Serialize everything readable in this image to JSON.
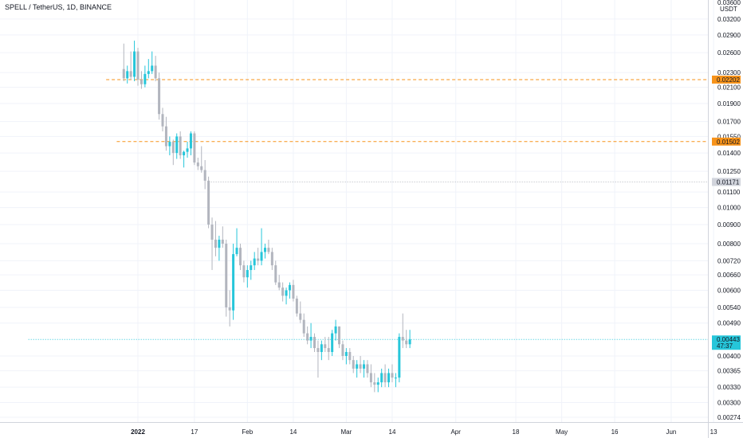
{
  "header": {
    "title": "SPELL / TetherUS, 1D, BINANCE"
  },
  "chart_data": {
    "type": "candlestick",
    "title": "SPELL / TetherUS, 1D, BINANCE",
    "y_axis": {
      "scale": "log",
      "currency": "USDT",
      "top_label": "0.03600",
      "ticks": [
        "0.03200",
        "0.02900",
        "0.02600",
        "0.02300",
        "0.02100",
        "0.01900",
        "0.01700",
        "0.01550",
        "0.01400",
        "0.01250",
        "0.01100",
        "0.01000",
        "0.00900",
        "0.00800",
        "0.00720",
        "0.00660",
        "0.00600",
        "0.00540",
        "0.00490",
        "0.00400",
        "0.00365",
        "0.00330",
        "0.00300",
        "0.00274"
      ],
      "ylim": [
        0.0026,
        0.037
      ]
    },
    "x_axis": {
      "labels": [
        {
          "label": "2022",
          "date": "2022-01-01",
          "bold": true
        },
        {
          "label": "17",
          "date": "2022-01-17"
        },
        {
          "label": "Feb",
          "date": "2022-02-01"
        },
        {
          "label": "14",
          "date": "2022-02-14"
        },
        {
          "label": "Mar",
          "date": "2022-03-01"
        },
        {
          "label": "14",
          "date": "2022-03-14"
        },
        {
          "label": "Apr",
          "date": "2022-04-01"
        },
        {
          "label": "18",
          "date": "2022-04-18"
        },
        {
          "label": "May",
          "date": "2022-05-01"
        },
        {
          "label": "16",
          "date": "2022-05-16"
        },
        {
          "label": "Jun",
          "date": "2022-06-01"
        },
        {
          "label": "13",
          "date": "2022-06-13"
        }
      ]
    },
    "horizontal_lines": [
      {
        "value": 0.02202,
        "label": "0.02202",
        "style": "dashed",
        "color": "#f7931a",
        "start_date": "2021-12-23"
      },
      {
        "value": 0.01502,
        "label": "0.01502",
        "style": "dashed",
        "color": "#f7931a",
        "start_date": "2021-12-26"
      },
      {
        "value": 0.01171,
        "label": "0.01171",
        "style": "dotted",
        "color": "#b2b5be",
        "start_date": "2022-01-21"
      },
      {
        "value": 0.00443,
        "label": "0.00443",
        "sub_label": "47:37",
        "style": "dotted",
        "color": "#26c6da",
        "start_date": "2021-12-01",
        "current": true
      }
    ],
    "colors": {
      "up": "#26c6da",
      "down": "#b2b5be",
      "level": "#f7931a",
      "grid": "#f0f3fa"
    },
    "grid": true,
    "candles": [
      {
        "date": "2021-12-28",
        "o": 0.0235,
        "h": 0.0275,
        "l": 0.0218,
        "c": 0.0222
      },
      {
        "date": "2021-12-29",
        "o": 0.0222,
        "h": 0.024,
        "l": 0.0215,
        "c": 0.0232
      },
      {
        "date": "2021-12-30",
        "o": 0.0232,
        "h": 0.0262,
        "l": 0.022,
        "c": 0.0224
      },
      {
        "date": "2021-12-31",
        "o": 0.0224,
        "h": 0.028,
        "l": 0.0218,
        "c": 0.0262
      },
      {
        "date": "2022-01-01",
        "o": 0.0262,
        "h": 0.0268,
        "l": 0.0212,
        "c": 0.022
      },
      {
        "date": "2022-01-02",
        "o": 0.022,
        "h": 0.0232,
        "l": 0.0208,
        "c": 0.0214
      },
      {
        "date": "2022-01-03",
        "o": 0.0214,
        "h": 0.024,
        "l": 0.021,
        "c": 0.0228
      },
      {
        "date": "2022-01-04",
        "o": 0.0228,
        "h": 0.025,
        "l": 0.0222,
        "c": 0.0232
      },
      {
        "date": "2022-01-05",
        "o": 0.0232,
        "h": 0.0262,
        "l": 0.0228,
        "c": 0.024
      },
      {
        "date": "2022-01-06",
        "o": 0.024,
        "h": 0.0255,
        "l": 0.0218,
        "c": 0.0222
      },
      {
        "date": "2022-01-07",
        "o": 0.0222,
        "h": 0.023,
        "l": 0.0172,
        "c": 0.0178
      },
      {
        "date": "2022-01-08",
        "o": 0.0178,
        "h": 0.0185,
        "l": 0.016,
        "c": 0.0165
      },
      {
        "date": "2022-01-09",
        "o": 0.0165,
        "h": 0.0175,
        "l": 0.0142,
        "c": 0.0146
      },
      {
        "date": "2022-01-10",
        "o": 0.0146,
        "h": 0.0155,
        "l": 0.0138,
        "c": 0.015
      },
      {
        "date": "2022-01-11",
        "o": 0.015,
        "h": 0.0152,
        "l": 0.013,
        "c": 0.014
      },
      {
        "date": "2022-01-12",
        "o": 0.014,
        "h": 0.0158,
        "l": 0.0135,
        "c": 0.0155
      },
      {
        "date": "2022-01-13",
        "o": 0.0155,
        "h": 0.016,
        "l": 0.0135,
        "c": 0.0138
      },
      {
        "date": "2022-01-14",
        "o": 0.0138,
        "h": 0.0142,
        "l": 0.0128,
        "c": 0.0141
      },
      {
        "date": "2022-01-15",
        "o": 0.0141,
        "h": 0.015,
        "l": 0.0136,
        "c": 0.0144
      },
      {
        "date": "2022-01-16",
        "o": 0.0144,
        "h": 0.016,
        "l": 0.0138,
        "c": 0.0158
      },
      {
        "date": "2022-01-17",
        "o": 0.0158,
        "h": 0.016,
        "l": 0.013,
        "c": 0.0132
      },
      {
        "date": "2022-01-18",
        "o": 0.0132,
        "h": 0.0136,
        "l": 0.0126,
        "c": 0.0129
      },
      {
        "date": "2022-01-19",
        "o": 0.0129,
        "h": 0.0146,
        "l": 0.0124,
        "c": 0.0126
      },
      {
        "date": "2022-01-20",
        "o": 0.0126,
        "h": 0.0134,
        "l": 0.0112,
        "c": 0.0118
      },
      {
        "date": "2022-01-21",
        "o": 0.0118,
        "h": 0.0121,
        "l": 0.0088,
        "c": 0.009
      },
      {
        "date": "2022-01-22",
        "o": 0.009,
        "h": 0.0094,
        "l": 0.0068,
        "c": 0.0082
      },
      {
        "date": "2022-01-23",
        "o": 0.0082,
        "h": 0.0092,
        "l": 0.0074,
        "c": 0.0078
      },
      {
        "date": "2022-01-24",
        "o": 0.0078,
        "h": 0.0084,
        "l": 0.0072,
        "c": 0.0082
      },
      {
        "date": "2022-01-25",
        "o": 0.0082,
        "h": 0.0089,
        "l": 0.0078,
        "c": 0.008
      },
      {
        "date": "2022-01-26",
        "o": 0.008,
        "h": 0.0082,
        "l": 0.0051,
        "c": 0.0054
      },
      {
        "date": "2022-01-27",
        "o": 0.0054,
        "h": 0.006,
        "l": 0.0048,
        "c": 0.0053
      },
      {
        "date": "2022-01-28",
        "o": 0.0053,
        "h": 0.008,
        "l": 0.005,
        "c": 0.0075
      },
      {
        "date": "2022-01-29",
        "o": 0.0075,
        "h": 0.0088,
        "l": 0.0074,
        "c": 0.0078
      },
      {
        "date": "2022-01-30",
        "o": 0.0078,
        "h": 0.008,
        "l": 0.0068,
        "c": 0.007
      },
      {
        "date": "2022-01-31",
        "o": 0.007,
        "h": 0.0072,
        "l": 0.0063,
        "c": 0.0065
      },
      {
        "date": "2022-02-01",
        "o": 0.0065,
        "h": 0.007,
        "l": 0.0061,
        "c": 0.0068
      },
      {
        "date": "2022-02-02",
        "o": 0.0068,
        "h": 0.0072,
        "l": 0.0064,
        "c": 0.007
      },
      {
        "date": "2022-02-03",
        "o": 0.007,
        "h": 0.0076,
        "l": 0.0068,
        "c": 0.0073
      },
      {
        "date": "2022-02-04",
        "o": 0.0073,
        "h": 0.0078,
        "l": 0.007,
        "c": 0.0072
      },
      {
        "date": "2022-02-05",
        "o": 0.0072,
        "h": 0.0088,
        "l": 0.007,
        "c": 0.0076
      },
      {
        "date": "2022-02-06",
        "o": 0.0076,
        "h": 0.008,
        "l": 0.0073,
        "c": 0.0078
      },
      {
        "date": "2022-02-07",
        "o": 0.0078,
        "h": 0.0082,
        "l": 0.0075,
        "c": 0.0076
      },
      {
        "date": "2022-02-08",
        "o": 0.0076,
        "h": 0.0078,
        "l": 0.0068,
        "c": 0.007
      },
      {
        "date": "2022-02-09",
        "o": 0.007,
        "h": 0.0072,
        "l": 0.0062,
        "c": 0.0063
      },
      {
        "date": "2022-02-10",
        "o": 0.0063,
        "h": 0.0066,
        "l": 0.006,
        "c": 0.0061
      },
      {
        "date": "2022-02-11",
        "o": 0.0061,
        "h": 0.0063,
        "l": 0.0056,
        "c": 0.0058
      },
      {
        "date": "2022-02-12",
        "o": 0.0058,
        "h": 0.0061,
        "l": 0.0055,
        "c": 0.006
      },
      {
        "date": "2022-02-13",
        "o": 0.006,
        "h": 0.0063,
        "l": 0.0057,
        "c": 0.0062
      },
      {
        "date": "2022-02-14",
        "o": 0.0062,
        "h": 0.0064,
        "l": 0.0056,
        "c": 0.0057
      },
      {
        "date": "2022-02-15",
        "o": 0.0057,
        "h": 0.0058,
        "l": 0.0051,
        "c": 0.0052
      },
      {
        "date": "2022-02-16",
        "o": 0.0052,
        "h": 0.0056,
        "l": 0.0049,
        "c": 0.005
      },
      {
        "date": "2022-02-17",
        "o": 0.005,
        "h": 0.0052,
        "l": 0.0045,
        "c": 0.0046
      },
      {
        "date": "2022-02-18",
        "o": 0.0046,
        "h": 0.0048,
        "l": 0.0043,
        "c": 0.0044
      },
      {
        "date": "2022-02-19",
        "o": 0.0044,
        "h": 0.0049,
        "l": 0.0042,
        "c": 0.0045
      },
      {
        "date": "2022-02-20",
        "o": 0.0045,
        "h": 0.0046,
        "l": 0.0041,
        "c": 0.0042
      },
      {
        "date": "2022-02-21",
        "o": 0.0042,
        "h": 0.0044,
        "l": 0.0035,
        "c": 0.0041
      },
      {
        "date": "2022-02-22",
        "o": 0.0041,
        "h": 0.0044,
        "l": 0.0039,
        "c": 0.0043
      },
      {
        "date": "2022-02-23",
        "o": 0.0043,
        "h": 0.0045,
        "l": 0.0041,
        "c": 0.0042
      },
      {
        "date": "2022-02-24",
        "o": 0.0042,
        "h": 0.0045,
        "l": 0.0039,
        "c": 0.0041
      },
      {
        "date": "2022-02-25",
        "o": 0.0041,
        "h": 0.0047,
        "l": 0.004,
        "c": 0.0046
      },
      {
        "date": "2022-02-26",
        "o": 0.0046,
        "h": 0.005,
        "l": 0.0044,
        "c": 0.0048
      },
      {
        "date": "2022-02-27",
        "o": 0.0048,
        "h": 0.0048,
        "l": 0.0042,
        "c": 0.0043
      },
      {
        "date": "2022-02-28",
        "o": 0.0043,
        "h": 0.0044,
        "l": 0.0039,
        "c": 0.004
      },
      {
        "date": "2022-03-01",
        "o": 0.004,
        "h": 0.0042,
        "l": 0.0038,
        "c": 0.0041
      },
      {
        "date": "2022-03-02",
        "o": 0.0041,
        "h": 0.0042,
        "l": 0.0038,
        "c": 0.0039
      },
      {
        "date": "2022-03-03",
        "o": 0.0039,
        "h": 0.004,
        "l": 0.0036,
        "c": 0.0037
      },
      {
        "date": "2022-03-04",
        "o": 0.0037,
        "h": 0.0039,
        "l": 0.0035,
        "c": 0.0038
      },
      {
        "date": "2022-03-05",
        "o": 0.0038,
        "h": 0.004,
        "l": 0.0036,
        "c": 0.0037
      },
      {
        "date": "2022-03-06",
        "o": 0.0037,
        "h": 0.0039,
        "l": 0.0035,
        "c": 0.0038
      },
      {
        "date": "2022-03-07",
        "o": 0.0038,
        "h": 0.0039,
        "l": 0.0035,
        "c": 0.0036
      },
      {
        "date": "2022-03-08",
        "o": 0.0036,
        "h": 0.0038,
        "l": 0.0033,
        "c": 0.0034
      },
      {
        "date": "2022-03-09",
        "o": 0.0034,
        "h": 0.0036,
        "l": 0.0032,
        "c": 0.00335
      },
      {
        "date": "2022-03-10",
        "o": 0.00335,
        "h": 0.0035,
        "l": 0.0032,
        "c": 0.0034
      },
      {
        "date": "2022-03-11",
        "o": 0.0034,
        "h": 0.0037,
        "l": 0.0033,
        "c": 0.0036
      },
      {
        "date": "2022-03-12",
        "o": 0.0036,
        "h": 0.0038,
        "l": 0.0033,
        "c": 0.0034
      },
      {
        "date": "2022-03-13",
        "o": 0.0034,
        "h": 0.0037,
        "l": 0.0033,
        "c": 0.0036
      },
      {
        "date": "2022-03-14",
        "o": 0.0036,
        "h": 0.0038,
        "l": 0.0034,
        "c": 0.0035
      },
      {
        "date": "2022-03-15",
        "o": 0.0035,
        "h": 0.0036,
        "l": 0.0033,
        "c": 0.0035
      },
      {
        "date": "2022-03-16",
        "o": 0.0035,
        "h": 0.0046,
        "l": 0.0034,
        "c": 0.0045
      },
      {
        "date": "2022-03-17",
        "o": 0.0045,
        "h": 0.0052,
        "l": 0.0042,
        "c": 0.0044
      },
      {
        "date": "2022-03-18",
        "o": 0.0044,
        "h": 0.0047,
        "l": 0.0042,
        "c": 0.0043
      },
      {
        "date": "2022-03-19",
        "o": 0.0043,
        "h": 0.0047,
        "l": 0.0042,
        "c": 0.00443
      }
    ]
  }
}
